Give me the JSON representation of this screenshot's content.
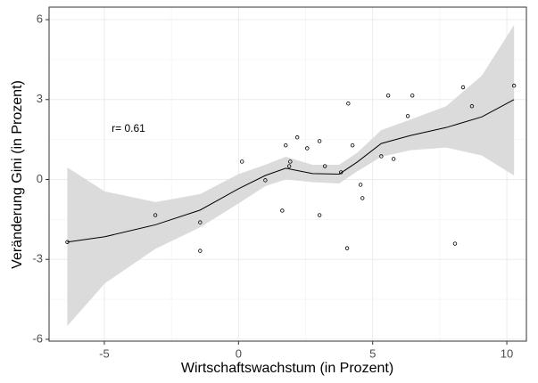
{
  "chart_data": {
    "type": "scatter",
    "xlabel": "Wirtschaftswachstum (in Prozent)",
    "ylabel": "Veränderung Gini (in Prozent)",
    "annotation": {
      "text": "r= 0.61",
      "x": -4.1,
      "y": 1.9
    },
    "xlim": [
      -7.06,
      10.73
    ],
    "ylim": [
      -6.07,
      6.47
    ],
    "xticks": [
      -5,
      0,
      5,
      10
    ],
    "yticks": [
      -6,
      -3,
      0,
      3,
      6
    ],
    "grid": true,
    "points": {
      "color": "#000000",
      "x": [
        -6.38,
        -3.1,
        -1.43,
        -1.43,
        0.13,
        1.0,
        1.63,
        1.76,
        1.89,
        1.93,
        2.19,
        2.56,
        3.02,
        3.02,
        3.22,
        3.82,
        4.05,
        4.09,
        4.25,
        4.55,
        4.62,
        5.32,
        5.58,
        5.78,
        6.31,
        6.48,
        8.07,
        8.37,
        8.7,
        10.27
      ],
      "values": [
        -2.35,
        -1.34,
        -1.61,
        -2.68,
        0.67,
        -0.03,
        -1.17,
        1.28,
        0.5,
        0.67,
        1.58,
        1.17,
        1.44,
        -1.34,
        0.5,
        0.27,
        -2.58,
        2.85,
        1.28,
        -0.2,
        -0.7,
        0.87,
        3.15,
        0.77,
        2.38,
        3.15,
        -2.41,
        3.46,
        2.75,
        3.52
      ]
    },
    "smooth": {
      "color": "#000000",
      "band_color": "#d9d9d9",
      "x": [
        -6.38,
        -4.98,
        -3.09,
        -1.43,
        0,
        1.0,
        1.76,
        2.76,
        3.75,
        4.42,
        5.32,
        6.41,
        7.74,
        9.07,
        10.27
      ],
      "values": [
        -2.35,
        -2.15,
        -1.7,
        -1.15,
        -0.35,
        0.15,
        0.42,
        0.22,
        0.2,
        0.65,
        1.35,
        1.65,
        1.95,
        2.35,
        3.0
      ],
      "upper": [
        0.45,
        -0.45,
        -0.85,
        -0.55,
        0.2,
        0.55,
        0.85,
        0.55,
        0.55,
        1.0,
        1.85,
        2.25,
        2.75,
        3.9,
        5.8
      ],
      "lower": [
        -5.5,
        -3.9,
        -2.6,
        -1.8,
        -0.9,
        -0.25,
        0.0,
        -0.1,
        -0.15,
        0.3,
        0.85,
        1.1,
        1.2,
        0.9,
        0.15
      ]
    }
  }
}
